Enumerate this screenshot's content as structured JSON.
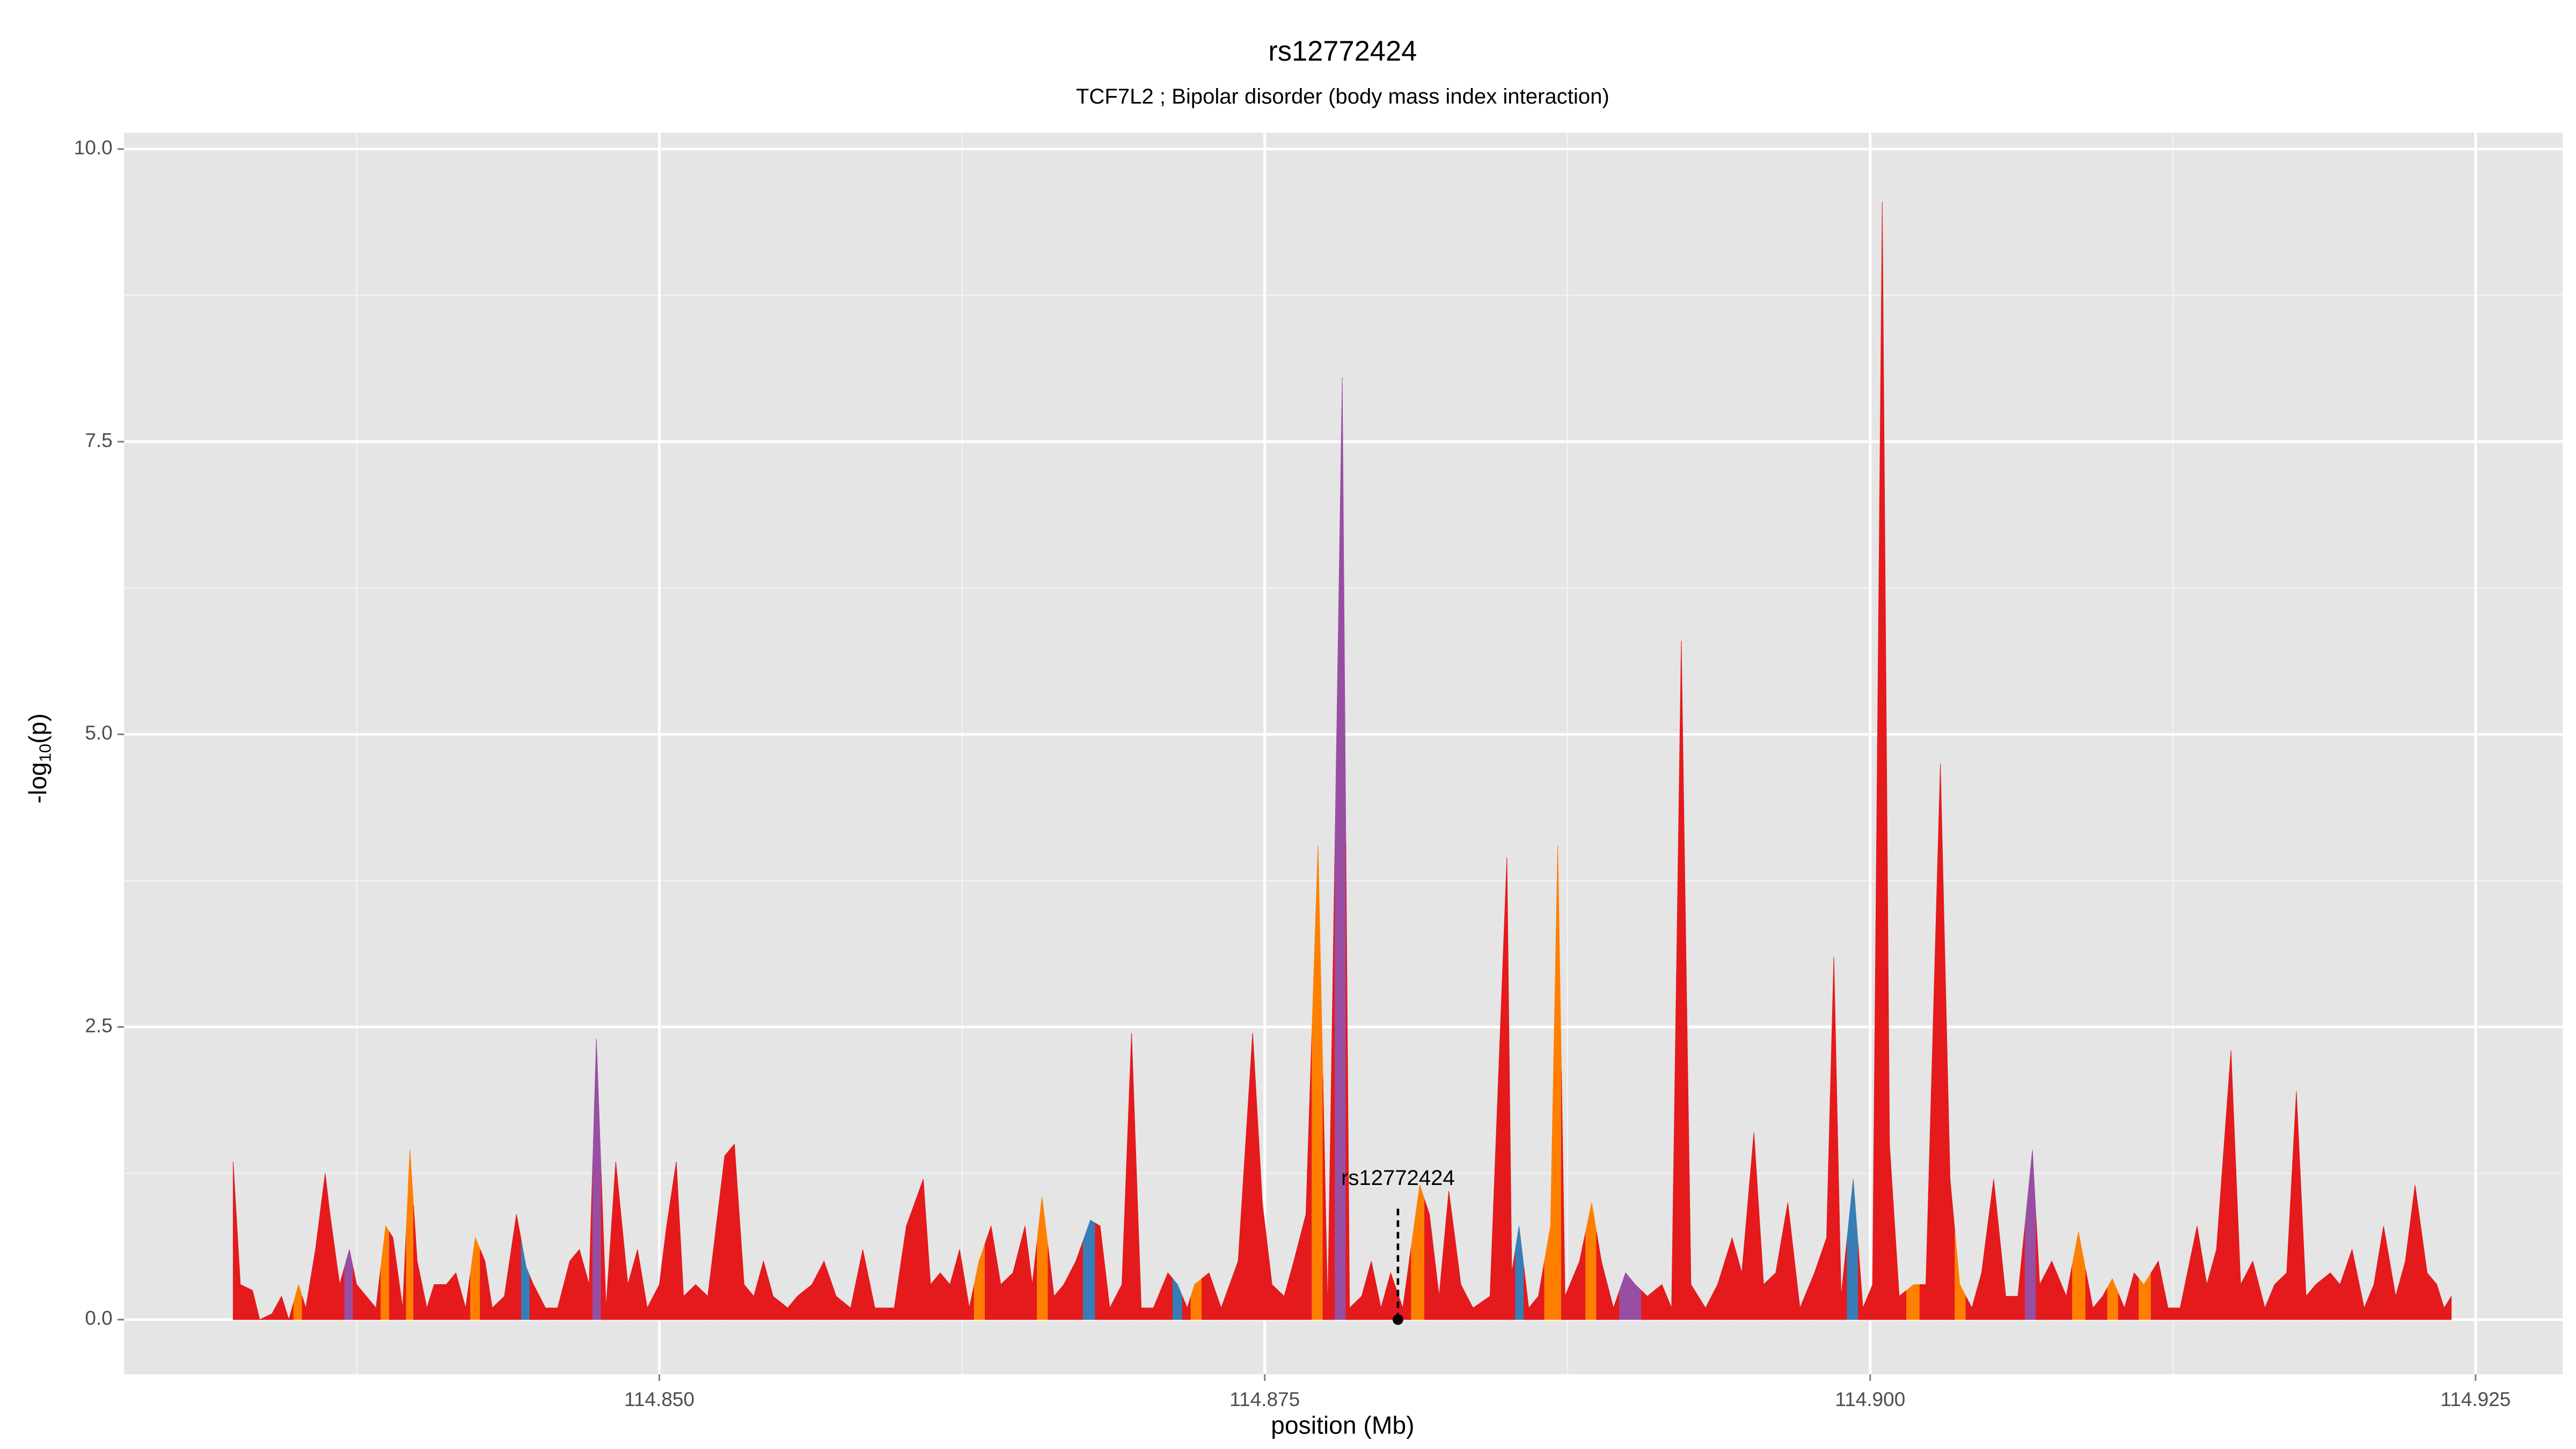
{
  "chart_data": {
    "type": "area",
    "title": "rs12772424",
    "subtitle": "TCF7L2 ; Bipolar disorder (body mass index interaction)",
    "xlabel": "position (Mb)",
    "ylabel": {
      "prefix": "-log",
      "sub": "10",
      "suffix": "(p)"
    },
    "xlim": [
      114.8279,
      114.9286
    ],
    "ylim": [
      -0.467,
      10.14
    ],
    "xticks": [
      {
        "value": 114.85,
        "label": "114.850"
      },
      {
        "value": 114.875,
        "label": "114.875"
      },
      {
        "value": 114.9,
        "label": "114.900"
      },
      {
        "value": 114.925,
        "label": "114.925"
      }
    ],
    "yticks": [
      {
        "value": 0,
        "label": "0.0"
      },
      {
        "value": 2.5,
        "label": "2.5"
      },
      {
        "value": 5,
        "label": "5.0"
      },
      {
        "value": 7.5,
        "label": "7.5"
      },
      {
        "value": 10,
        "label": "10.0"
      }
    ],
    "grid": true,
    "annotation": {
      "label": "rs12772424",
      "x": 114.8805,
      "y": 1.2,
      "line_top": 0.95,
      "point_y": 0
    },
    "series": [
      {
        "x": [
          114.8324,
          114.8327,
          114.8332,
          114.8335,
          114.834,
          114.8344,
          114.8347,
          114.8351,
          114.8354,
          114.8358,
          114.8362,
          114.8364,
          114.8368,
          114.8372,
          114.8375,
          114.8379,
          114.8383,
          114.8387,
          114.839,
          114.8394,
          114.8397,
          114.84,
          114.8404,
          114.8407,
          114.8412,
          114.8416,
          114.842,
          114.8424,
          114.8428,
          114.8431,
          114.8436,
          114.8441,
          114.8445,
          114.8448,
          114.8453,
          114.8458,
          114.8463,
          114.8467,
          114.8471,
          114.8474,
          114.8478,
          114.8482,
          114.8487,
          114.8491,
          114.8495,
          114.85,
          114.8503,
          114.8507,
          114.851,
          114.8515,
          114.852,
          114.8527,
          114.8531,
          114.8535,
          114.8539,
          114.8543,
          114.8547,
          114.8553,
          114.8557,
          114.8563,
          114.8568,
          114.8573,
          114.8579,
          114.8584,
          114.8589,
          114.8597,
          114.8602,
          114.8609,
          114.8612,
          114.8616,
          114.862,
          114.8624,
          114.8628,
          114.8632,
          114.8637,
          114.8641,
          114.8646,
          114.8651,
          114.8654,
          114.8658,
          114.8663,
          114.8667,
          114.8672,
          114.8678,
          114.8682,
          114.8686,
          114.8691,
          114.8695,
          114.8699,
          114.8704,
          114.871,
          114.8714,
          114.8718,
          114.8721,
          114.8727,
          114.8732,
          114.8739,
          114.8745,
          114.8749,
          114.8753,
          114.8758,
          114.8762,
          114.8767,
          114.8772,
          114.8776,
          114.8782,
          114.8785,
          114.879,
          114.8794,
          114.8798,
          114.8802,
          114.8807,
          114.8814,
          114.8818,
          114.8822,
          114.8826,
          114.8831,
          114.8836,
          114.8843,
          114.885,
          114.8852,
          114.8855,
          114.8859,
          114.8863,
          114.8868,
          114.8871,
          114.8874,
          114.888,
          114.8885,
          114.8889,
          114.8894,
          114.8899,
          114.8903,
          114.8908,
          114.8914,
          114.8918,
          114.8922,
          114.8926,
          114.8932,
          114.8937,
          114.8943,
          114.8947,
          114.8952,
          114.8956,
          114.8961,
          114.8966,
          114.8971,
          114.8977,
          114.8982,
          114.8985,
          114.8988,
          114.8993,
          114.8997,
          114.9001,
          114.9005,
          114.9008,
          114.9012,
          114.9018,
          114.9023,
          114.9029,
          114.9033,
          114.9037,
          114.9042,
          114.9046,
          114.9051,
          114.9056,
          114.9061,
          114.9067,
          114.907,
          114.9075,
          114.9081,
          114.9086,
          114.9092,
          114.9096,
          114.91,
          114.9105,
          114.9109,
          114.9113,
          114.9119,
          114.9123,
          114.9128,
          114.9135,
          114.9139,
          114.9143,
          114.9149,
          114.9153,
          114.9158,
          114.9163,
          114.9167,
          114.9172,
          114.9176,
          114.918,
          114.9184,
          114.919,
          114.9194,
          114.9199,
          114.9204,
          114.9208,
          114.9212,
          114.9217,
          114.9221,
          114.9225,
          114.923,
          114.9234,
          114.9237,
          114.924
        ],
        "values": [
          1.35,
          0.3,
          0.25,
          0,
          0.05,
          0.2,
          0,
          0.3,
          0.1,
          0.6,
          1.25,
          0.9,
          0.3,
          0.6,
          0.3,
          0.2,
          0.1,
          0.8,
          0.7,
          0.1,
          1.45,
          0.5,
          0.1,
          0.3,
          0.3,
          0.4,
          0.1,
          0.7,
          0.5,
          0.1,
          0.2,
          0.9,
          0.45,
          0.3,
          0.1,
          0.1,
          0.5,
          0.6,
          0.3,
          2.4,
          0.1,
          1.35,
          0.3,
          0.6,
          0.1,
          0.3,
          0.8,
          1.35,
          0.2,
          0.3,
          0.2,
          1.4,
          1.5,
          0.3,
          0.2,
          0.5,
          0.2,
          0.1,
          0.2,
          0.3,
          0.5,
          0.2,
          0.1,
          0.6,
          0.1,
          0.1,
          0.8,
          1.2,
          0.3,
          0.4,
          0.3,
          0.6,
          0.1,
          0.5,
          0.8,
          0.3,
          0.4,
          0.8,
          0.3,
          1.05,
          0.2,
          0.3,
          0.5,
          0.85,
          0.8,
          0.1,
          0.3,
          2.45,
          0.1,
          0.1,
          0.4,
          0.3,
          0.1,
          0.3,
          0.4,
          0.1,
          0.5,
          2.45,
          1.0,
          0.3,
          0.2,
          0.5,
          0.9,
          4.05,
          0.1,
          8.05,
          0.1,
          0.2,
          0.5,
          0.1,
          0.4,
          0.1,
          1.15,
          0.9,
          0.2,
          1.1,
          0.3,
          0.1,
          0.2,
          3.95,
          0.4,
          0.8,
          0.1,
          0.2,
          0.8,
          4.05,
          0.2,
          0.5,
          1.0,
          0.5,
          0.1,
          0.4,
          0.3,
          0.2,
          0.3,
          0.1,
          5.8,
          0.3,
          0.1,
          0.3,
          0.7,
          0.4,
          1.6,
          0.3,
          0.4,
          1.0,
          0.1,
          0.4,
          0.7,
          3.1,
          0.2,
          1.2,
          0.1,
          0.3,
          9.55,
          1.5,
          0.2,
          0.3,
          0.3,
          4.75,
          1.2,
          0.3,
          0.1,
          0.4,
          1.2,
          0.2,
          0.2,
          1.45,
          0.3,
          0.5,
          0.2,
          0.75,
          0.1,
          0.2,
          0.35,
          0.1,
          0.4,
          0.3,
          0.5,
          0.1,
          0.1,
          0.8,
          0.3,
          0.6,
          2.3,
          0.3,
          0.5,
          0.1,
          0.3,
          0.4,
          1.95,
          0.2,
          0.3,
          0.4,
          0.3,
          0.6,
          0.1,
          0.3,
          0.8,
          0.2,
          0.5,
          1.15,
          0.4,
          0.3,
          0.1,
          0.2
        ],
        "colors": [
          "#e41a1c",
          "#e41a1c",
          "#e41a1c",
          "#e41a1c",
          "#e41a1c",
          "#e41a1c",
          "#e41a1c",
          "#ff7f00",
          "#e41a1c",
          "#e41a1c",
          "#e41a1c",
          "#e41a1c",
          "#e41a1c",
          "#984ea3",
          "#e41a1c",
          "#e41a1c",
          "#e41a1c",
          "#ff7f00",
          "#e41a1c",
          "#e41a1c",
          "#ff7f00",
          "#e41a1c",
          "#e41a1c",
          "#e41a1c",
          "#e41a1c",
          "#e41a1c",
          "#e41a1c",
          "#ff7f00",
          "#e41a1c",
          "#e41a1c",
          "#e41a1c",
          "#e41a1c",
          "#377eb8",
          "#e41a1c",
          "#e41a1c",
          "#e41a1c",
          "#e41a1c",
          "#e41a1c",
          "#e41a1c",
          "#984ea3",
          "#e41a1c",
          "#e41a1c",
          "#e41a1c",
          "#e41a1c",
          "#e41a1c",
          "#e41a1c",
          "#e41a1c",
          "#e41a1c",
          "#e41a1c",
          "#e41a1c",
          "#e41a1c",
          "#e41a1c",
          "#e41a1c",
          "#e41a1c",
          "#e41a1c",
          "#e41a1c",
          "#e41a1c",
          "#e41a1c",
          "#e41a1c",
          "#e41a1c",
          "#e41a1c",
          "#e41a1c",
          "#e41a1c",
          "#e41a1c",
          "#e41a1c",
          "#e41a1c",
          "#e41a1c",
          "#e41a1c",
          "#e41a1c",
          "#e41a1c",
          "#e41a1c",
          "#e41a1c",
          "#e41a1c",
          "#ff7f00",
          "#e41a1c",
          "#e41a1c",
          "#e41a1c",
          "#e41a1c",
          "#e41a1c",
          "#ff7f00",
          "#e41a1c",
          "#e41a1c",
          "#e41a1c",
          "#377eb8",
          "#e41a1c",
          "#e41a1c",
          "#e41a1c",
          "#e41a1c",
          "#e41a1c",
          "#e41a1c",
          "#e41a1c",
          "#377eb8",
          "#e41a1c",
          "#ff7f00",
          "#e41a1c",
          "#e41a1c",
          "#e41a1c",
          "#e41a1c",
          "#e41a1c",
          "#e41a1c",
          "#e41a1c",
          "#e41a1c",
          "#e41a1c",
          "#ff7f00",
          "#e41a1c",
          "#984ea3",
          "#e41a1c",
          "#e41a1c",
          "#e41a1c",
          "#e41a1c",
          "#e41a1c",
          "#e41a1c",
          "#ff7f00",
          "#e41a1c",
          "#e41a1c",
          "#e41a1c",
          "#e41a1c",
          "#e41a1c",
          "#e41a1c",
          "#e41a1c",
          "#e41a1c",
          "#377eb8",
          "#e41a1c",
          "#e41a1c",
          "#ff7f00",
          "#ff7f00",
          "#e41a1c",
          "#e41a1c",
          "#ff7f00",
          "#e41a1c",
          "#e41a1c",
          "#984ea3",
          "#984ea3",
          "#e41a1c",
          "#e41a1c",
          "#e41a1c",
          "#e41a1c",
          "#e41a1c",
          "#e41a1c",
          "#e41a1c",
          "#e41a1c",
          "#e41a1c",
          "#e41a1c",
          "#e41a1c",
          "#e41a1c",
          "#e41a1c",
          "#e41a1c",
          "#e41a1c",
          "#e41a1c",
          "#e41a1c",
          "#e41a1c",
          "#377eb8",
          "#e41a1c",
          "#e41a1c",
          "#e41a1c",
          "#e41a1c",
          "#e41a1c",
          "#ff7f00",
          "#e41a1c",
          "#e41a1c",
          "#e41a1c",
          "#ff7f00",
          "#e41a1c",
          "#e41a1c",
          "#e41a1c",
          "#e41a1c",
          "#e41a1c",
          "#984ea3",
          "#e41a1c",
          "#e41a1c",
          "#e41a1c",
          "#ff7f00",
          "#e41a1c",
          "#e41a1c",
          "#ff7f00",
          "#e41a1c",
          "#e41a1c",
          "#ff7f00",
          "#e41a1c",
          "#e41a1c",
          "#e41a1c",
          "#e41a1c",
          "#e41a1c",
          "#e41a1c",
          "#e41a1c",
          "#e41a1c",
          "#e41a1c",
          "#e41a1c",
          "#e41a1c",
          "#e41a1c",
          "#e41a1c",
          "#e41a1c",
          "#e41a1c",
          "#e41a1c",
          "#e41a1c",
          "#e41a1c",
          "#e41a1c",
          "#e41a1c",
          "#e41a1c",
          "#e41a1c",
          "#e41a1c",
          "#e41a1c",
          "#e41a1c",
          "#e41a1c",
          "#e41a1c",
          "#e41a1c"
        ]
      }
    ]
  }
}
